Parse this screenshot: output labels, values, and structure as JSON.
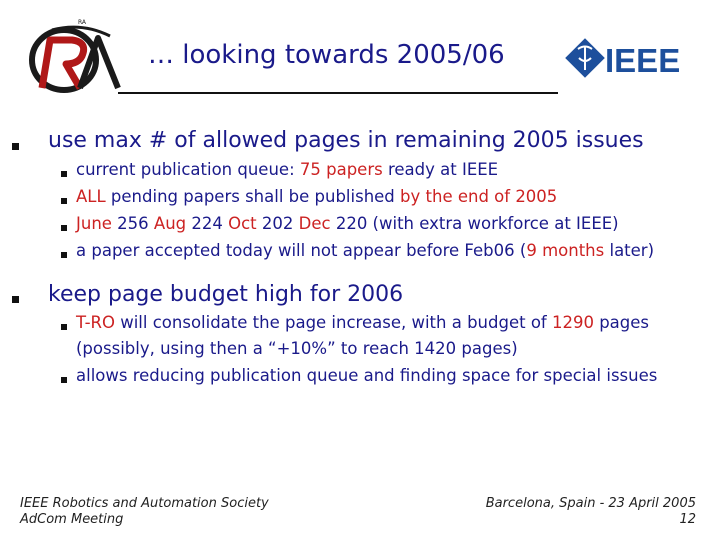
{
  "slide": {
    "title": "… looking towards 2005/06",
    "ieee_logo_text": "IEEE",
    "ra_logo_text": "RA"
  },
  "bullets": {
    "b1": {
      "text": "use max # of allowed pages in remaining 2005 issues"
    },
    "b1_1": {
      "p1": "current publication queue: ",
      "h1": "75 papers",
      "p2": " ready at IEEE"
    },
    "b1_2": {
      "h1": "ALL",
      "p1": " pending papers shall be published ",
      "h2": "by the end of 2005"
    },
    "b1_3": {
      "h1": "June",
      "p1": " 256 ",
      "h2": "Aug",
      "p2": " 224 ",
      "h3": "Oct",
      "p3": " 202 ",
      "h4": "Dec",
      "p4": " 220 (with extra workforce at IEEE)"
    },
    "b1_4": {
      "p1": "a paper accepted today will not appear before Feb06 (",
      "h1": "9 months",
      "p2": " later)"
    },
    "b2": {
      "text": "keep page budget high for 2006"
    },
    "b2_1": {
      "h1": "T-RO",
      "p1": " will consolidate the page increase, with a budget of ",
      "h2": "1290",
      "p2": " pages",
      "line2": "(possibly, using then a “+10%” to reach 1420 pages)"
    },
    "b2_2": {
      "text": "allows reducing publication queue and finding space for special issues"
    }
  },
  "footer": {
    "left_line1": "IEEE Robotics and Automation Society",
    "left_line2": "AdCom Meeting",
    "right_line1": "Barcelona, Spain - 23 April 2005",
    "page_number": "12"
  },
  "colors": {
    "text": "#1a1a8a",
    "highlight": "#cc2222",
    "ieee_blue": "#1d4f9c",
    "logo_red": "#b01818"
  }
}
